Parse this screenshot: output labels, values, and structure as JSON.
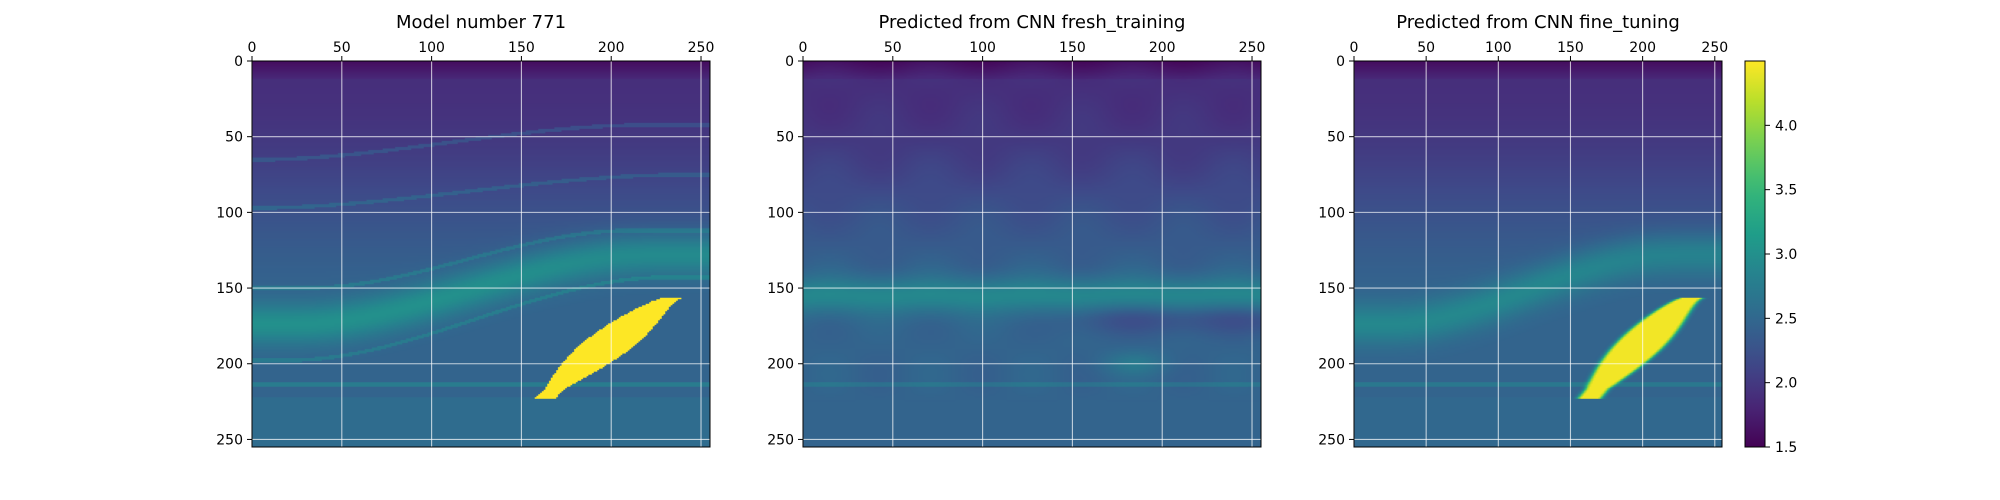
{
  "chart_data": [
    {
      "type": "heatmap",
      "title": "Model number 771",
      "xlim": [
        0,
        255
      ],
      "ylim": [
        255,
        0
      ],
      "xticks": [
        "0",
        "50",
        "100",
        "150",
        "200",
        "250"
      ],
      "yticks": [
        "0",
        "50",
        "100",
        "150",
        "200",
        "250"
      ],
      "grid": true,
      "variant": "model",
      "anomaly": "sharp"
    },
    {
      "type": "heatmap",
      "title": "Predicted from CNN fresh_training",
      "xlim": [
        0,
        255
      ],
      "ylim": [
        255,
        0
      ],
      "xticks": [
        "0",
        "50",
        "100",
        "150",
        "200",
        "250"
      ],
      "yticks": [
        "0",
        "50",
        "100",
        "150",
        "200",
        "250"
      ],
      "grid": true,
      "variant": "fresh",
      "anomaly": "none"
    },
    {
      "type": "heatmap",
      "title": "Predicted from CNN fine_tuning",
      "xlim": [
        0,
        255
      ],
      "ylim": [
        255,
        0
      ],
      "xticks": [
        "0",
        "50",
        "100",
        "150",
        "200",
        "250"
      ],
      "yticks": [
        "0",
        "50",
        "100",
        "150",
        "200",
        "250"
      ],
      "grid": true,
      "variant": "fine",
      "anomaly": "blurred"
    }
  ],
  "colorbar": {
    "colormap": "viridis",
    "range": [
      1.5,
      4.5
    ],
    "ticks": [
      "1.5",
      "2.0",
      "2.5",
      "3.0",
      "3.5",
      "4.0"
    ]
  }
}
